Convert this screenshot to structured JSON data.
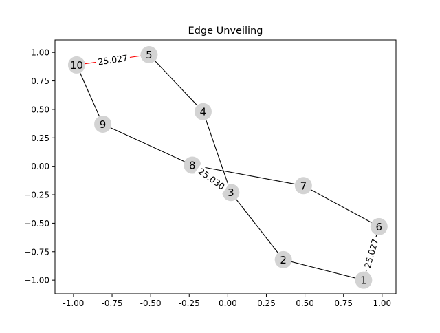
{
  "chart_data": {
    "type": "graph",
    "title": "Edge Unveiling",
    "xlabel": "",
    "ylabel": "",
    "xlim": [
      -1.12,
      1.09
    ],
    "ylim": [
      -1.12,
      1.11
    ],
    "x_ticks": [
      "-1.00",
      "-0.75",
      "-0.50",
      "-0.25",
      "0.00",
      "0.25",
      "0.50",
      "0.75",
      "1.00"
    ],
    "x_tick_values": [
      -1.0,
      -0.75,
      -0.5,
      -0.25,
      0.0,
      0.25,
      0.5,
      0.75,
      1.0
    ],
    "y_ticks": [
      "1.00",
      "0.75",
      "0.50",
      "0.25",
      "0.00",
      "−0.25",
      "−0.50",
      "−0.75",
      "−1.00"
    ],
    "y_tick_values": [
      1.0,
      0.75,
      0.5,
      0.25,
      0.0,
      -0.25,
      -0.5,
      -0.75,
      -1.0
    ],
    "grid": false,
    "nodes": [
      {
        "label": "1",
        "x": 0.88,
        "y": -1.0
      },
      {
        "label": "2",
        "x": 0.36,
        "y": -0.82
      },
      {
        "label": "3",
        "x": 0.02,
        "y": -0.23
      },
      {
        "label": "4",
        "x": -0.16,
        "y": 0.48
      },
      {
        "label": "5",
        "x": -0.51,
        "y": 0.98
      },
      {
        "label": "6",
        "x": 0.98,
        "y": -0.53
      },
      {
        "label": "7",
        "x": 0.49,
        "y": -0.17
      },
      {
        "label": "8",
        "x": -0.23,
        "y": 0.01
      },
      {
        "label": "9",
        "x": -0.81,
        "y": 0.37
      },
      {
        "label": "10",
        "x": -0.98,
        "y": 0.89
      }
    ],
    "edges": [
      {
        "source": "1",
        "target": "2",
        "color": "#000000",
        "label": ""
      },
      {
        "source": "2",
        "target": "3",
        "color": "#000000",
        "label": ""
      },
      {
        "source": "3",
        "target": "4",
        "color": "#000000",
        "label": ""
      },
      {
        "source": "4",
        "target": "5",
        "color": "#000000",
        "label": ""
      },
      {
        "source": "5",
        "target": "10",
        "color": "#ff0000",
        "label": "25.027"
      },
      {
        "source": "10",
        "target": "9",
        "color": "#000000",
        "label": ""
      },
      {
        "source": "9",
        "target": "8",
        "color": "#000000",
        "label": ""
      },
      {
        "source": "8",
        "target": "7",
        "color": "#000000",
        "label": ""
      },
      {
        "source": "7",
        "target": "6",
        "color": "#000000",
        "label": ""
      },
      {
        "source": "6",
        "target": "1",
        "color": "#000000",
        "label": "25.027"
      },
      {
        "source": "8",
        "target": "3",
        "color": "#000000",
        "label": "25.030"
      }
    ],
    "node_color": "#d3d3d3"
  }
}
